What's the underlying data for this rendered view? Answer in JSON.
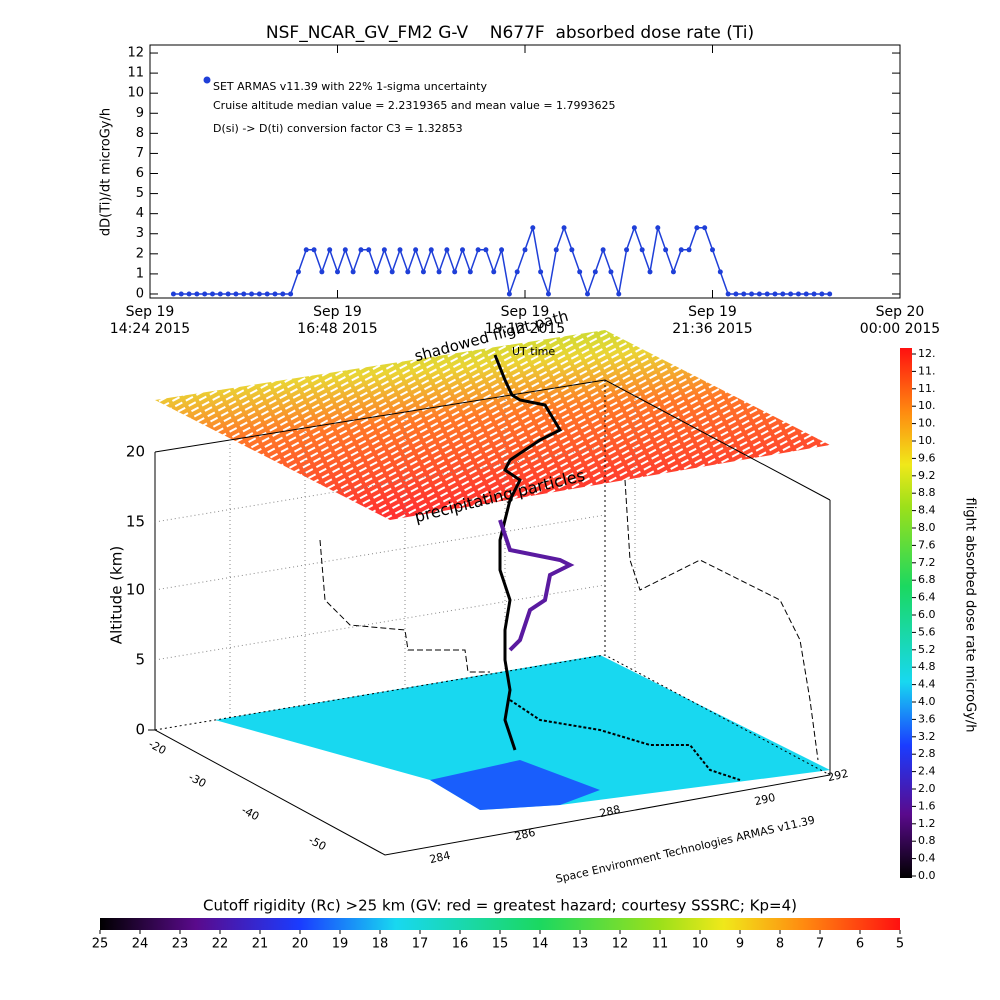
{
  "chart_data": {
    "type": "line",
    "title": "NSF_NCAR_GV_FM2 G-V    N677F  absorbed dose rate (Ti)",
    "y_label": "dD(Ti)/dt microGy/h",
    "annotations": [
      "Cruise altitude median value = 2.2319365 and mean value = 1.7993625",
      "D(si) -> D(ti) conversion factor C3 = 1.32853"
    ],
    "x": [
      14.7,
      14.8,
      14.9,
      15.0,
      15.1,
      15.2,
      15.3,
      15.4,
      15.5,
      15.6,
      15.7,
      15.8,
      15.9,
      16.0,
      16.1,
      16.2,
      16.3,
      16.4,
      16.5,
      16.6,
      16.7,
      16.8,
      16.9,
      17.0,
      17.1,
      17.2,
      17.3,
      17.4,
      17.5,
      17.6,
      17.7,
      17.8,
      17.9,
      18.0,
      18.1,
      18.2,
      18.3,
      18.4,
      18.5,
      18.6,
      18.7,
      18.8,
      18.9,
      19.0,
      19.1,
      19.2,
      19.3,
      19.4,
      19.5,
      19.6,
      19.7,
      19.8,
      19.9,
      20.0,
      20.1,
      20.2,
      20.3,
      20.4,
      20.5,
      20.6,
      20.7,
      20.8,
      20.9,
      21.0,
      21.1,
      21.2,
      21.3,
      21.4,
      21.5,
      21.6,
      21.7,
      21.8,
      21.9,
      22.0,
      22.1,
      22.2,
      22.3,
      22.4,
      22.5,
      22.6,
      22.7,
      22.8,
      22.9,
      23.0,
      23.1
    ],
    "series": [
      {
        "name": "SET ARMAS v11.39 with 22% 1-sigma uncertainty",
        "color": "#1f3fd8",
        "values": [
          0,
          0,
          0,
          0,
          0,
          0,
          0,
          0,
          0,
          0,
          0,
          0,
          0,
          0,
          0,
          0,
          1.1,
          2.2,
          2.2,
          1.1,
          2.2,
          1.1,
          2.2,
          1.1,
          2.2,
          2.2,
          1.1,
          2.2,
          1.1,
          2.2,
          1.1,
          2.2,
          1.1,
          2.2,
          1.1,
          2.2,
          1.1,
          2.2,
          1.1,
          2.2,
          2.2,
          1.1,
          2.2,
          0,
          1.1,
          2.2,
          3.3,
          1.1,
          0,
          2.2,
          3.3,
          2.2,
          1.1,
          0,
          1.1,
          2.2,
          1.1,
          0,
          2.2,
          3.3,
          2.2,
          1.1,
          3.3,
          2.2,
          1.1,
          2.2,
          2.2,
          3.3,
          3.3,
          2.2,
          1.1,
          0,
          0,
          0,
          0,
          0,
          0,
          0,
          0,
          0,
          0,
          0,
          0,
          0,
          0
        ]
      }
    ],
    "xlim": [
      14.4,
      24.0
    ],
    "xticks": [
      {
        "value": 14.4,
        "label": [
          "Sep 19",
          "14:24 2015"
        ]
      },
      {
        "value": 16.8,
        "label": [
          "Sep 19",
          "16:48 2015"
        ]
      },
      {
        "value": 19.2,
        "label": [
          "Sep 19",
          "19:12 2015"
        ]
      },
      {
        "value": 21.6,
        "label": [
          "Sep 19",
          "21:36 2015"
        ]
      },
      {
        "value": 24.0,
        "label": [
          "Sep 20",
          "00:00 2015"
        ]
      }
    ],
    "ylim": [
      -0.2,
      12.4
    ],
    "yticks": [
      0,
      1,
      2,
      3,
      4,
      5,
      6,
      7,
      8,
      9,
      10,
      11,
      12
    ]
  },
  "scene": {
    "annotations": [
      "shadowed flight path",
      "UT time",
      "precipitating particles"
    ],
    "z_label": "Altitude (km)",
    "z_ticks": [
      0,
      5,
      10,
      15,
      20
    ],
    "lat_ticks": [
      -20,
      -30,
      -40,
      -50
    ],
    "lon_ticks": [
      284,
      286,
      288,
      290,
      292
    ],
    "credit": "Space Environment Technologies ARMAS v11.39"
  },
  "colorbar_right": {
    "label": "flight absorbed dose rate microGy/h",
    "lim": [
      0,
      12
    ],
    "ticks": [
      {
        "value": 0,
        "label": "0.0"
      },
      {
        "value": 0.4,
        "label": "0.4"
      },
      {
        "value": 0.8,
        "label": "0.8"
      },
      {
        "value": 1.2,
        "label": "1.2"
      },
      {
        "value": 1.6,
        "label": "1.6"
      },
      {
        "value": 2.0,
        "label": "2.0"
      },
      {
        "value": 2.4,
        "label": "2.4"
      },
      {
        "value": 2.8,
        "label": "2.8"
      },
      {
        "value": 3.2,
        "label": "3.2"
      },
      {
        "value": 3.6,
        "label": "3.6"
      },
      {
        "value": 4.0,
        "label": "4.0"
      },
      {
        "value": 4.4,
        "label": "4.4"
      },
      {
        "value": 4.8,
        "label": "4.8"
      },
      {
        "value": 5.2,
        "label": "5.2"
      },
      {
        "value": 5.6,
        "label": "5.6"
      },
      {
        "value": 6.0,
        "label": "6.0"
      },
      {
        "value": 6.4,
        "label": "6.4"
      },
      {
        "value": 6.8,
        "label": "6.8"
      },
      {
        "value": 7.2,
        "label": "7.2"
      },
      {
        "value": 7.6,
        "label": "7.6"
      },
      {
        "value": 8.0,
        "label": "8.0"
      },
      {
        "value": 8.4,
        "label": "8.4"
      },
      {
        "value": 8.8,
        "label": "8.8"
      },
      {
        "value": 9.2,
        "label": "9.2"
      },
      {
        "value": 9.6,
        "label": "9.6"
      },
      {
        "value": 10.0,
        "label": "10."
      },
      {
        "value": 10.4,
        "label": "10."
      },
      {
        "value": 10.8,
        "label": "10."
      },
      {
        "value": 11.2,
        "label": "11."
      },
      {
        "value": 11.6,
        "label": "11."
      },
      {
        "value": 12.0,
        "label": "12."
      }
    ]
  },
  "colorbar_bottom": {
    "label": "Cutoff rigidity (Rc) >25 km (GV: red = greatest hazard; courtesy SSSRC; Kp=4)",
    "lim": [
      25,
      5
    ],
    "ticks": [
      25,
      24,
      23,
      22,
      21,
      20,
      19,
      18,
      17,
      16,
      15,
      14,
      13,
      12,
      11,
      10,
      9,
      8,
      7,
      6,
      5
    ]
  }
}
